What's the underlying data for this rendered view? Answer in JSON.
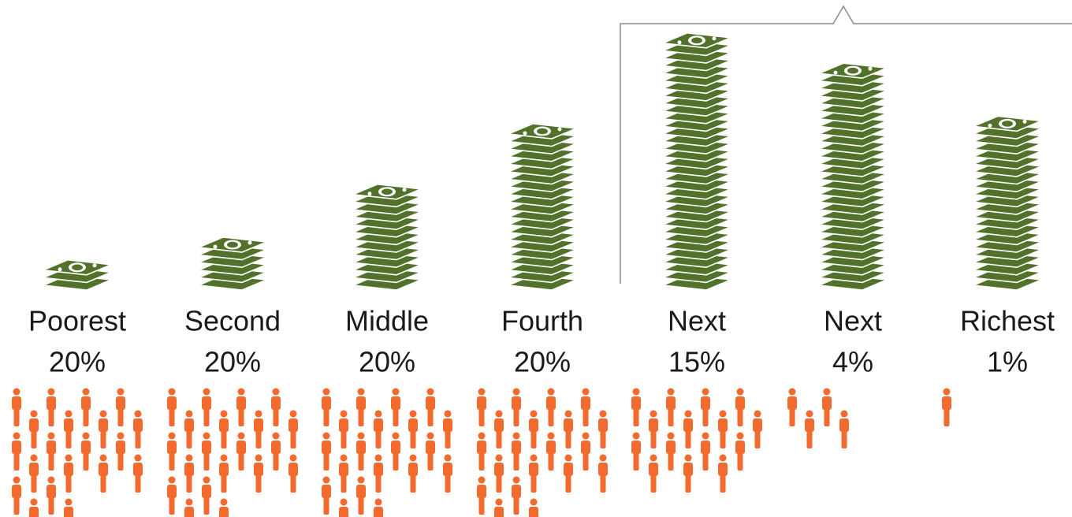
{
  "chart_data": {
    "type": "pictogram",
    "categories": [
      "Poorest",
      "Second",
      "Middle",
      "Fourth",
      "Next",
      "Next",
      "Richest"
    ],
    "values": [
      20,
      20,
      20,
      20,
      15,
      4,
      1
    ],
    "value_labels": [
      "20%",
      "20%",
      "20%",
      "20%",
      "15%",
      "4%",
      "1%"
    ],
    "people_color": "#f26a2e",
    "series": [
      {
        "color": "#52722b",
        "values": [
          3,
          6,
          13,
          21,
          33,
          29,
          22
        ]
      }
    ]
  }
}
